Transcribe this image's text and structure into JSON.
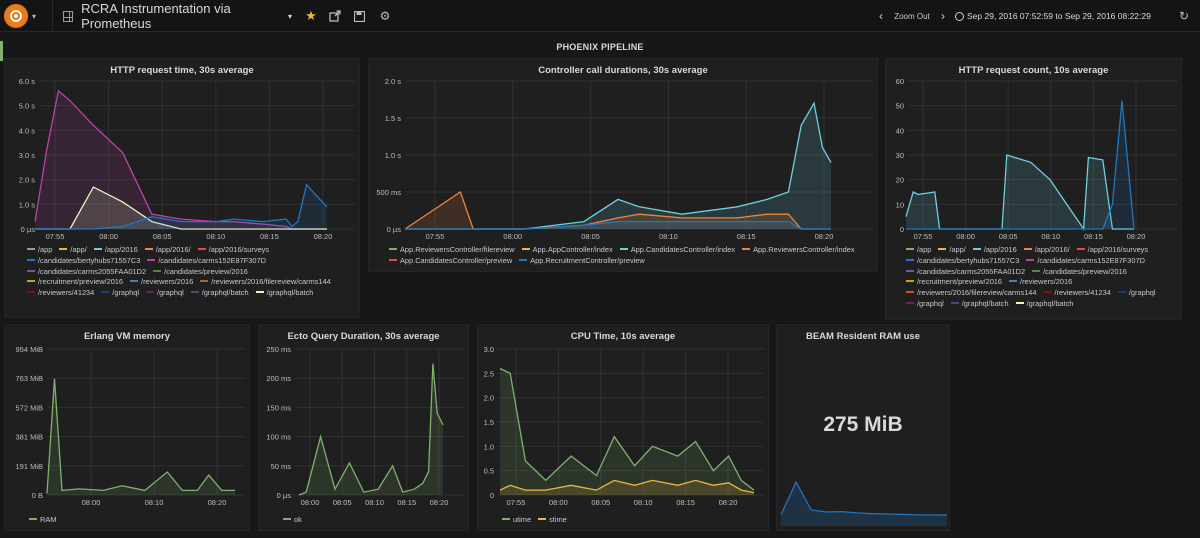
{
  "topbar": {
    "dashboard_title": "RCRA Instrumentation via Prometheus",
    "zoom_out_label": "Zoom Out",
    "time_range": "Sep 29, 2016 07:52:59 to Sep 29, 2016 08:22:29",
    "icons": [
      "grafana-logo-icon",
      "dashboard-grid-icon",
      "star-icon",
      "share-icon",
      "save-icon",
      "settings-gear-icon",
      "chevron-left-icon",
      "chevron-right-icon",
      "clock-icon",
      "refresh-icon"
    ],
    "colors": {
      "logo": "#eb7b18",
      "star": "#eab839"
    }
  },
  "row": {
    "title": "PHOENIX PIPELINE"
  },
  "panels": {
    "http_time": {
      "title": "HTTP request time, 30s average",
      "y_ticks": [
        "6.0 s",
        "5.0 s",
        "4.0 s",
        "3.0 s",
        "2.0 s",
        "1.0 s",
        "0 μs"
      ],
      "x_ticks": [
        "07:55",
        "08:00",
        "08:05",
        "08:10",
        "08:15",
        "08:20"
      ],
      "legend": [
        {
          "label": "/app",
          "color": "#7eb26d"
        },
        {
          "label": "/app/",
          "color": "#eab839"
        },
        {
          "label": "/app/2016",
          "color": "#6ed0e0"
        },
        {
          "label": "/app/2016/",
          "color": "#ef843c"
        },
        {
          "label": "/app/2016/surveys",
          "color": "#e24d42"
        },
        {
          "label": "/candidates/bertyhubs71557C3",
          "color": "#1f78c1"
        },
        {
          "label": "/candidates/carms152E87F307D",
          "color": "#ba43a9"
        },
        {
          "label": "/candidates/carms2055FAA01D2",
          "color": "#705da0"
        },
        {
          "label": "/candidates/preview/2016",
          "color": "#508642"
        },
        {
          "label": "/recruitment/preview/2016",
          "color": "#cca300"
        },
        {
          "label": "/reviewers/2016",
          "color": "#447ebc"
        },
        {
          "label": "/reviewers/2016/filereview/carms144",
          "color": "#c15c17"
        },
        {
          "label": "/reviewers/41234",
          "color": "#890f02"
        },
        {
          "label": "/graphql",
          "color": "#0a437c"
        },
        {
          "label": "/graphql",
          "color": "#6d1f62"
        },
        {
          "label": "/graphql/batch",
          "color": "#584477"
        },
        {
          "label": "/graphql/batch",
          "color": "#e5f5c4"
        }
      ]
    },
    "controller": {
      "title": "Controller call durations, 30s average",
      "y_ticks": [
        "2.0 s",
        "1.5 s",
        "1.0 s",
        "500 ms",
        "0 μs"
      ],
      "x_ticks": [
        "07:55",
        "08:00",
        "08:05",
        "08:10",
        "08:15",
        "08:20"
      ],
      "legend": [
        {
          "label": "App.ReviewersController/filereview",
          "color": "#7eb26d"
        },
        {
          "label": "App.AppController/index",
          "color": "#eab839"
        },
        {
          "label": "App.CandidatesController/index",
          "color": "#6ed0e0"
        },
        {
          "label": "App.ReviewersController/index",
          "color": "#ef843c"
        },
        {
          "label": "App.CandidatesController/preview",
          "color": "#e24d42"
        },
        {
          "label": "App.RecruitmentController/preview",
          "color": "#1f78c1"
        }
      ]
    },
    "http_count": {
      "title": "HTTP request count, 10s average",
      "y_ticks": [
        "60",
        "50",
        "40",
        "30",
        "20",
        "10",
        "0"
      ],
      "x_ticks": [
        "07:55",
        "08:00",
        "08:05",
        "08:10",
        "08:15",
        "08:20"
      ],
      "legend": [
        {
          "label": "/app",
          "color": "#7eb26d"
        },
        {
          "label": "/app/",
          "color": "#eab839"
        },
        {
          "label": "/app/2016",
          "color": "#6ed0e0"
        },
        {
          "label": "/app/2016/",
          "color": "#ef843c"
        },
        {
          "label": "/app/2016/surveys",
          "color": "#e24d42"
        },
        {
          "label": "/candidates/bertyhubs71557C3",
          "color": "#1f78c1"
        },
        {
          "label": "/candidates/carms152E87F307D",
          "color": "#ba43a9"
        },
        {
          "label": "/candidates/carms2055FAA01D2",
          "color": "#705da0"
        },
        {
          "label": "/candidates/preview/2016",
          "color": "#508642"
        },
        {
          "label": "/recruitment/preview/2016",
          "color": "#cca300"
        },
        {
          "label": "/reviewers/2016",
          "color": "#447ebc"
        },
        {
          "label": "/reviewers/2016/filereview/carms144",
          "color": "#c15c17"
        },
        {
          "label": "/reviewers/41234",
          "color": "#890f02"
        },
        {
          "label": "/graphql",
          "color": "#0a437c"
        },
        {
          "label": "/graphql",
          "color": "#6d1f62"
        },
        {
          "label": "/graphql/batch",
          "color": "#584477"
        },
        {
          "label": "/graphql/batch",
          "color": "#e5f5c4"
        }
      ]
    },
    "erlang_mem": {
      "title": "Erlang VM memory",
      "y_ticks": [
        "954 MiB",
        "763 MiB",
        "572 MiB",
        "381 MiB",
        "191 MiB",
        "0 B"
      ],
      "x_ticks": [
        "08:00",
        "08:10",
        "08:20"
      ],
      "legend": [
        {
          "label": "RAM",
          "color": "#7eb26d"
        }
      ]
    },
    "ecto": {
      "title": "Ecto Query Duration, 30s average",
      "y_ticks": [
        "250 ms",
        "200 ms",
        "150 ms",
        "100 ms",
        "50 ms",
        "0 μs"
      ],
      "x_ticks": [
        "08:00",
        "08:05",
        "08:10",
        "08:15",
        "08:20"
      ],
      "legend": [
        {
          "label": "ok",
          "color": "#7eb26d"
        }
      ]
    },
    "cpu": {
      "title": "CPU Time, 10s average",
      "y_ticks": [
        "3.0",
        "2.5",
        "2.0",
        "1.5",
        "1.0",
        "0.5",
        "0"
      ],
      "x_ticks": [
        "07:55",
        "08:00",
        "08:05",
        "08:10",
        "08:15",
        "08:20"
      ],
      "legend": [
        {
          "label": "utime",
          "color": "#7eb26d"
        },
        {
          "label": "stime",
          "color": "#eab839"
        }
      ]
    },
    "beam_ram": {
      "title": "BEAM Resident RAM use",
      "value": "275 MiB",
      "spark_color": "#1f78c1"
    }
  },
  "chart_data": [
    {
      "type": "line",
      "title": "HTTP request time, 30s average",
      "x_unit": "time",
      "y_unit": "seconds",
      "ylim": [
        0,
        6
      ],
      "x": [
        "07:53",
        "07:54",
        "07:55",
        "07:56",
        "07:58",
        "08:00",
        "08:02",
        "08:05",
        "08:08",
        "08:10",
        "08:13",
        "08:15",
        "08:16",
        "08:17",
        "08:18",
        "08:19",
        "08:20"
      ],
      "series": [
        {
          "name": "/graphql",
          "values": [
            0.3,
            3.2,
            5.6,
            5.2,
            4.2,
            3.1,
            0.6,
            0.4,
            0.3,
            0.3,
            0.2,
            0.1,
            0,
            0,
            0,
            0,
            0
          ]
        },
        {
          "name": "/graphql/batch",
          "values": [
            0,
            0,
            0,
            0,
            1.7,
            1.1,
            0.3,
            0,
            0,
            0,
            0,
            0,
            0,
            0,
            0,
            0,
            0
          ]
        },
        {
          "name": "/reviewers/2016",
          "values": [
            0,
            0,
            0,
            0,
            0,
            0.1,
            0.5,
            0.3,
            0.3,
            0.4,
            0.3,
            0.4,
            0.1,
            0.3,
            1.8,
            1.4,
            0.9
          ]
        }
      ]
    },
    {
      "type": "line",
      "title": "Controller call durations, 30s average",
      "x_unit": "time",
      "y_unit": "seconds",
      "ylim": [
        0,
        2
      ],
      "x": [
        "07:53",
        "07:54",
        "07:55",
        "08:00",
        "08:03",
        "08:05",
        "08:07",
        "08:10",
        "08:13",
        "08:15",
        "08:17",
        "08:18",
        "08:19",
        "08:20",
        "08:21"
      ],
      "series": [
        {
          "name": "App.CandidatesController/index",
          "values": [
            0,
            0,
            0,
            0,
            0.1,
            0.4,
            0.3,
            0.2,
            0.3,
            0.4,
            0.5,
            1.4,
            1.7,
            1.1,
            0.9
          ]
        },
        {
          "name": "App.ReviewersController/index",
          "values": [
            0,
            0.5,
            0,
            0,
            0.05,
            0.15,
            0.2,
            0.15,
            0.15,
            0.2,
            0.2,
            0,
            0,
            0,
            0
          ]
        },
        {
          "name": "App.RecruitmentController/preview",
          "values": [
            0,
            0,
            0,
            0,
            0.05,
            0.1,
            0.1,
            0.1,
            0.1,
            0.1,
            0.1,
            0,
            0,
            0,
            0
          ]
        }
      ]
    },
    {
      "type": "line",
      "title": "HTTP request count, 10s average",
      "x_unit": "time",
      "y_unit": "count",
      "ylim": [
        0,
        60
      ],
      "x": [
        "07:53",
        "07:54",
        "07:55",
        "07:56",
        "07:58",
        "08:03",
        "08:05",
        "08:08",
        "08:10",
        "08:13",
        "08:15",
        "08:17",
        "08:18",
        "08:19",
        "08:20"
      ],
      "series": [
        {
          "name": "/app/2016",
          "values": [
            5,
            15,
            14,
            15,
            0,
            0,
            30,
            27,
            20,
            0,
            29,
            28,
            0,
            0,
            0
          ]
        },
        {
          "name": "/graphql",
          "values": [
            0,
            0,
            0,
            0,
            0,
            0,
            0,
            0,
            0,
            0,
            0,
            0,
            10,
            52,
            0
          ]
        }
      ]
    },
    {
      "type": "line",
      "title": "Erlang VM memory",
      "x_unit": "time",
      "y_unit": "MiB",
      "ylim": [
        0,
        954
      ],
      "x": [
        "07:53",
        "07:54",
        "07:55",
        "07:57",
        "08:00",
        "08:03",
        "08:06",
        "08:09",
        "08:12",
        "08:14",
        "08:16",
        "08:19",
        "08:22"
      ],
      "series": [
        {
          "name": "RAM",
          "values": [
            10,
            760,
            30,
            40,
            30,
            60,
            30,
            150,
            30,
            30,
            130,
            30,
            30
          ]
        }
      ]
    },
    {
      "type": "line",
      "title": "Ecto Query Duration, 30s average",
      "x_unit": "time",
      "y_unit": "ms",
      "ylim": [
        0,
        250
      ],
      "x": [
        "07:57",
        "07:58",
        "08:00",
        "08:02",
        "08:04",
        "08:06",
        "08:08",
        "08:10",
        "08:12",
        "08:14",
        "08:16",
        "08:18",
        "08:19",
        "08:20",
        "08:21"
      ],
      "series": [
        {
          "name": "ok",
          "values": [
            0,
            5,
            100,
            10,
            55,
            5,
            10,
            50,
            5,
            10,
            20,
            40,
            225,
            140,
            120
          ]
        }
      ]
    },
    {
      "type": "line",
      "title": "CPU Time, 10s average",
      "x_unit": "time",
      "y_unit": "seconds",
      "ylim": [
        0,
        3
      ],
      "x": [
        "07:53",
        "07:54",
        "07:55",
        "07:57",
        "08:00",
        "08:03",
        "08:05",
        "08:07",
        "08:09",
        "08:12",
        "08:14",
        "08:16",
        "08:18",
        "08:20",
        "08:22"
      ],
      "series": [
        {
          "name": "utime",
          "values": [
            2.6,
            2.5,
            0.7,
            0.3,
            0.8,
            0.4,
            1.2,
            0.6,
            1.0,
            0.8,
            1.1,
            0.5,
            0.8,
            0.3,
            0.1
          ]
        },
        {
          "name": "stime",
          "values": [
            0.1,
            0.2,
            0.1,
            0.1,
            0.2,
            0.1,
            0.3,
            0.2,
            0.3,
            0.2,
            0.3,
            0.2,
            0.25,
            0.1,
            0.05
          ]
        }
      ]
    },
    {
      "type": "area",
      "title": "BEAM Resident RAM use",
      "x_unit": "time",
      "y_unit": "MiB",
      "values": [
        280,
        1100,
        400,
        350,
        360,
        330,
        310,
        300,
        290,
        280,
        275,
        275
      ]
    }
  ]
}
